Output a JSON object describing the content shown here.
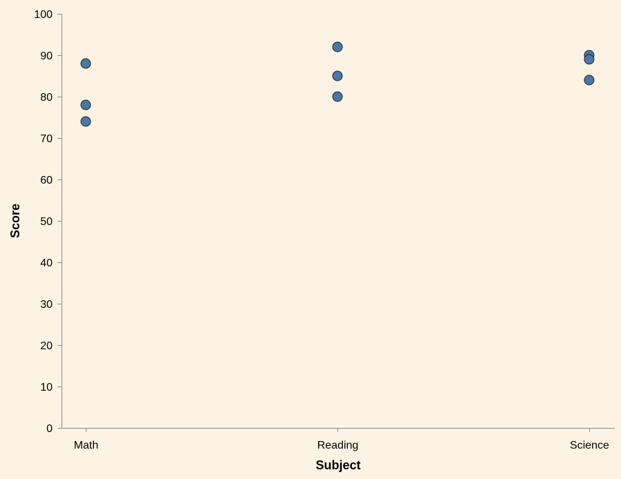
{
  "chart_data": {
    "type": "scatter",
    "xlabel": "Subject",
    "ylabel": "Score",
    "categories": [
      "Math",
      "Reading",
      "Science"
    ],
    "ylim": [
      0,
      100
    ],
    "yticks": [
      0,
      10,
      20,
      30,
      40,
      50,
      60,
      70,
      80,
      90,
      100
    ],
    "grid": false,
    "points": [
      {
        "x": "Math",
        "y": 88
      },
      {
        "x": "Math",
        "y": 78
      },
      {
        "x": "Math",
        "y": 74
      },
      {
        "x": "Reading",
        "y": 92
      },
      {
        "x": "Reading",
        "y": 85
      },
      {
        "x": "Reading",
        "y": 80
      },
      {
        "x": "Science",
        "y": 90
      },
      {
        "x": "Science",
        "y": 89
      },
      {
        "x": "Science",
        "y": 84
      }
    ],
    "colors": {
      "background": "#fdf3e5",
      "point_fill": "#4c78a8",
      "point_stroke": "#1f1f1f",
      "axis": "#888888"
    }
  }
}
